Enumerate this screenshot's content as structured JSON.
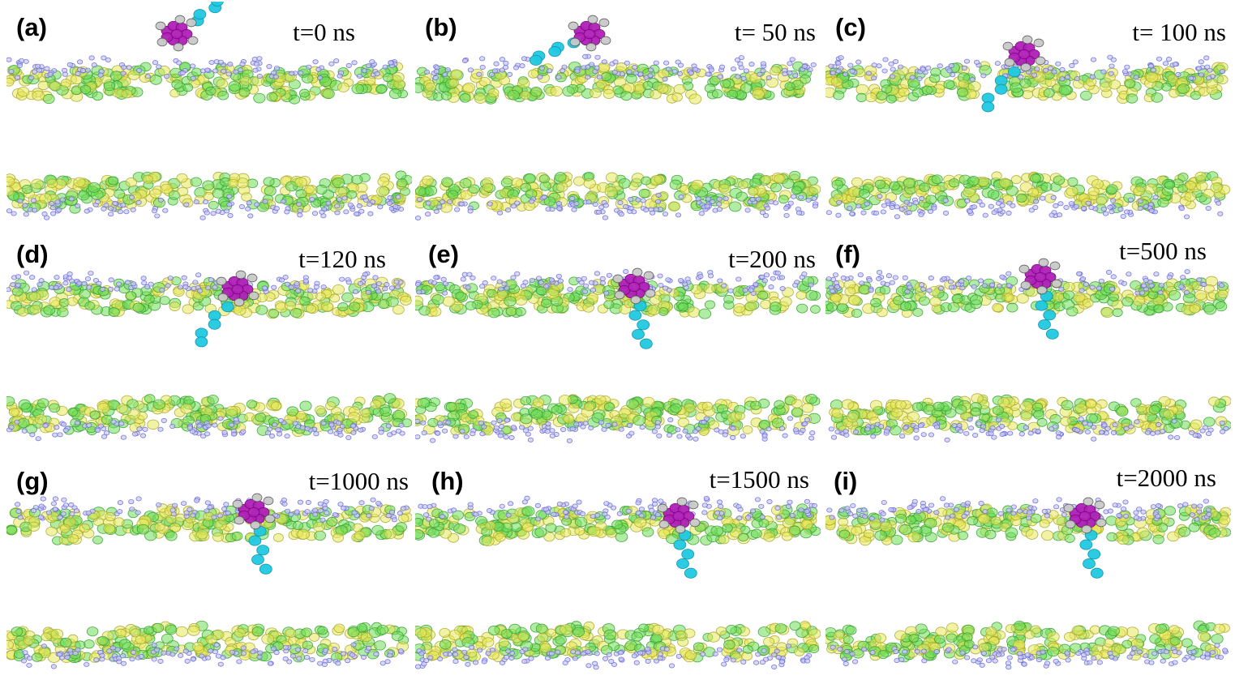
{
  "figure": {
    "panels": [
      {
        "label": "(a)",
        "time": "t=0 ns"
      },
      {
        "label": "(b)",
        "time": "t= 50 ns"
      },
      {
        "label": "(c)",
        "time": "t= 100 ns"
      },
      {
        "label": "(d)",
        "time": "t=120 ns"
      },
      {
        "label": "(e)",
        "time": "t=200 ns"
      },
      {
        "label": "(f)",
        "time": "t=500 ns"
      },
      {
        "label": "(g)",
        "time": "t=1000 ns"
      },
      {
        "label": "(h)",
        "time": "t=1500 ns"
      },
      {
        "label": "(i)",
        "time": "t=2000 ns"
      }
    ]
  },
  "colors": {
    "lipid_green": "#6fdc5a",
    "lipid_yellow": "#e8e85a",
    "lipid_blue": "#6a6ad8",
    "molecule_magenta": "#b020b8",
    "molecule_gray": "#8a8a8a",
    "molecule_cyan": "#20c8e0"
  }
}
